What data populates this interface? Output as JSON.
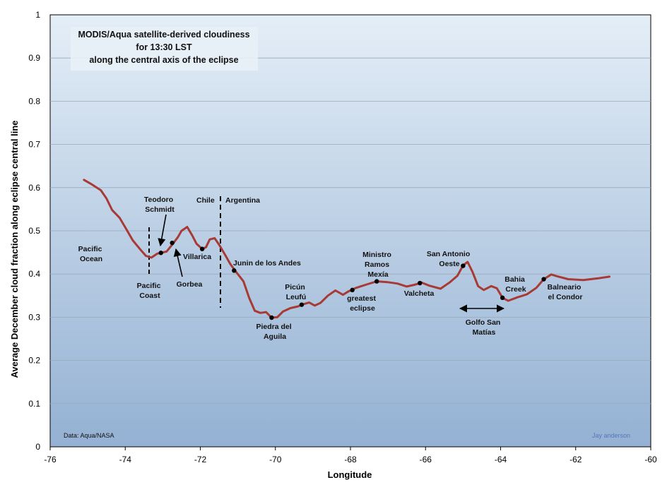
{
  "chart_data": {
    "type": "line",
    "title_lines": [
      "MODIS/Aqua satellite-derived cloudiness",
      "for 13:30 LST",
      "along the central axis of the eclipse"
    ],
    "xlabel": "Longitude",
    "ylabel": "Average December cloud fraction along eclipse central line",
    "xlim": [
      -76,
      -60
    ],
    "ylim": [
      0,
      1
    ],
    "x_ticks": [
      -76,
      -74,
      -72,
      -70,
      -68,
      -66,
      -64,
      -62,
      -60
    ],
    "y_ticks": [
      0,
      0.1,
      0.2,
      0.3,
      0.4,
      0.5,
      0.6,
      0.7,
      0.8,
      0.9,
      1
    ],
    "grid": true,
    "series": [
      {
        "color": "#a83a36",
        "points": [
          [
            -75.1,
            0.618
          ],
          [
            -74.9,
            0.608
          ],
          [
            -74.65,
            0.594
          ],
          [
            -74.5,
            0.575
          ],
          [
            -74.35,
            0.548
          ],
          [
            -74.15,
            0.53
          ],
          [
            -74.0,
            0.508
          ],
          [
            -73.8,
            0.478
          ],
          [
            -73.6,
            0.457
          ],
          [
            -73.45,
            0.442
          ],
          [
            -73.3,
            0.438
          ],
          [
            -73.15,
            0.447
          ],
          [
            -73.05,
            0.449
          ],
          [
            -72.9,
            0.452
          ],
          [
            -72.75,
            0.468
          ],
          [
            -72.6,
            0.485
          ],
          [
            -72.5,
            0.5
          ],
          [
            -72.35,
            0.509
          ],
          [
            -72.22,
            0.49
          ],
          [
            -72.1,
            0.47
          ],
          [
            -71.95,
            0.458
          ],
          [
            -71.85,
            0.462
          ],
          [
            -71.75,
            0.48
          ],
          [
            -71.62,
            0.483
          ],
          [
            -71.5,
            0.468
          ],
          [
            -71.35,
            0.446
          ],
          [
            -71.2,
            0.423
          ],
          [
            -71.05,
            0.405
          ],
          [
            -70.85,
            0.383
          ],
          [
            -70.7,
            0.345
          ],
          [
            -70.55,
            0.315
          ],
          [
            -70.4,
            0.31
          ],
          [
            -70.25,
            0.312
          ],
          [
            -70.1,
            0.299
          ],
          [
            -69.95,
            0.3
          ],
          [
            -69.8,
            0.313
          ],
          [
            -69.6,
            0.321
          ],
          [
            -69.4,
            0.325
          ],
          [
            -69.3,
            0.329
          ],
          [
            -69.1,
            0.334
          ],
          [
            -68.95,
            0.327
          ],
          [
            -68.8,
            0.333
          ],
          [
            -68.6,
            0.35
          ],
          [
            -68.4,
            0.362
          ],
          [
            -68.2,
            0.352
          ],
          [
            -68.05,
            0.36
          ],
          [
            -67.85,
            0.368
          ],
          [
            -67.6,
            0.375
          ],
          [
            -67.3,
            0.383
          ],
          [
            -67.0,
            0.381
          ],
          [
            -66.75,
            0.378
          ],
          [
            -66.5,
            0.371
          ],
          [
            -66.3,
            0.375
          ],
          [
            -66.1,
            0.38
          ],
          [
            -65.9,
            0.373
          ],
          [
            -65.6,
            0.366
          ],
          [
            -65.35,
            0.381
          ],
          [
            -65.15,
            0.396
          ],
          [
            -65.0,
            0.42
          ],
          [
            -64.88,
            0.428
          ],
          [
            -64.75,
            0.405
          ],
          [
            -64.6,
            0.372
          ],
          [
            -64.45,
            0.363
          ],
          [
            -64.25,
            0.372
          ],
          [
            -64.1,
            0.367
          ],
          [
            -63.95,
            0.345
          ],
          [
            -63.8,
            0.338
          ],
          [
            -63.55,
            0.346
          ],
          [
            -63.3,
            0.353
          ],
          [
            -63.05,
            0.368
          ],
          [
            -62.85,
            0.388
          ],
          [
            -62.65,
            0.399
          ],
          [
            -62.5,
            0.395
          ],
          [
            -62.2,
            0.388
          ],
          [
            -61.8,
            0.386
          ],
          [
            -61.4,
            0.39
          ],
          [
            -61.1,
            0.394
          ]
        ]
      }
    ],
    "points": [
      {
        "name": "Teodoro Schmidt",
        "x": -73.05,
        "y": 0.449
      },
      {
        "name": "Gorbea",
        "x": -72.75,
        "y": 0.472
      },
      {
        "name": "Villarica",
        "x": -71.95,
        "y": 0.458
      },
      {
        "name": "Junin de los Andes",
        "x": -71.1,
        "y": 0.408
      },
      {
        "name": "Piedra del Aguila",
        "x": -70.1,
        "y": 0.299
      },
      {
        "name": "Picún Leufú",
        "x": -69.3,
        "y": 0.329
      },
      {
        "name": "greatest eclipse",
        "x": -67.95,
        "y": 0.363
      },
      {
        "name": "Ministro Ramos Mexía",
        "x": -67.3,
        "y": 0.383
      },
      {
        "name": "Valcheta",
        "x": -66.15,
        "y": 0.379
      },
      {
        "name": "San Antonio Oeste",
        "x": -65.0,
        "y": 0.419
      },
      {
        "name": "Bahia Creek",
        "x": -63.95,
        "y": 0.345
      },
      {
        "name": "Balneario el Condor",
        "x": -62.85,
        "y": 0.388
      }
    ],
    "annotations": [
      {
        "lines": [
          "Pacific",
          "Ocean"
        ]
      },
      {
        "lines": [
          "Teodoro",
          "Schmidt"
        ]
      },
      {
        "lines": [
          "Chile"
        ]
      },
      {
        "lines": [
          "Argentina"
        ]
      },
      {
        "lines": [
          "Villarica"
        ]
      },
      {
        "lines": [
          "Gorbea"
        ]
      },
      {
        "lines": [
          "Pacific",
          "Coast"
        ]
      },
      {
        "lines": [
          "Junin de los Andes"
        ]
      },
      {
        "lines": [
          "Piedra del",
          "Aguila"
        ]
      },
      {
        "lines": [
          "Picún",
          "Leufú"
        ]
      },
      {
        "lines": [
          "greatest",
          "eclipse"
        ]
      },
      {
        "lines": [
          "Ministro",
          "Ramos",
          "Mexía"
        ]
      },
      {
        "lines": [
          "Valcheta"
        ]
      },
      {
        "lines": [
          "San Antonio",
          "Oeste"
        ]
      },
      {
        "lines": [
          "Bahia",
          "Creek"
        ]
      },
      {
        "lines": [
          "Golfo San",
          "Matías"
        ]
      },
      {
        "lines": [
          "Balneario",
          "el Condor"
        ]
      }
    ],
    "data_credit": "Data: Aqua/NASA",
    "author_credit": "Jay anderson"
  }
}
